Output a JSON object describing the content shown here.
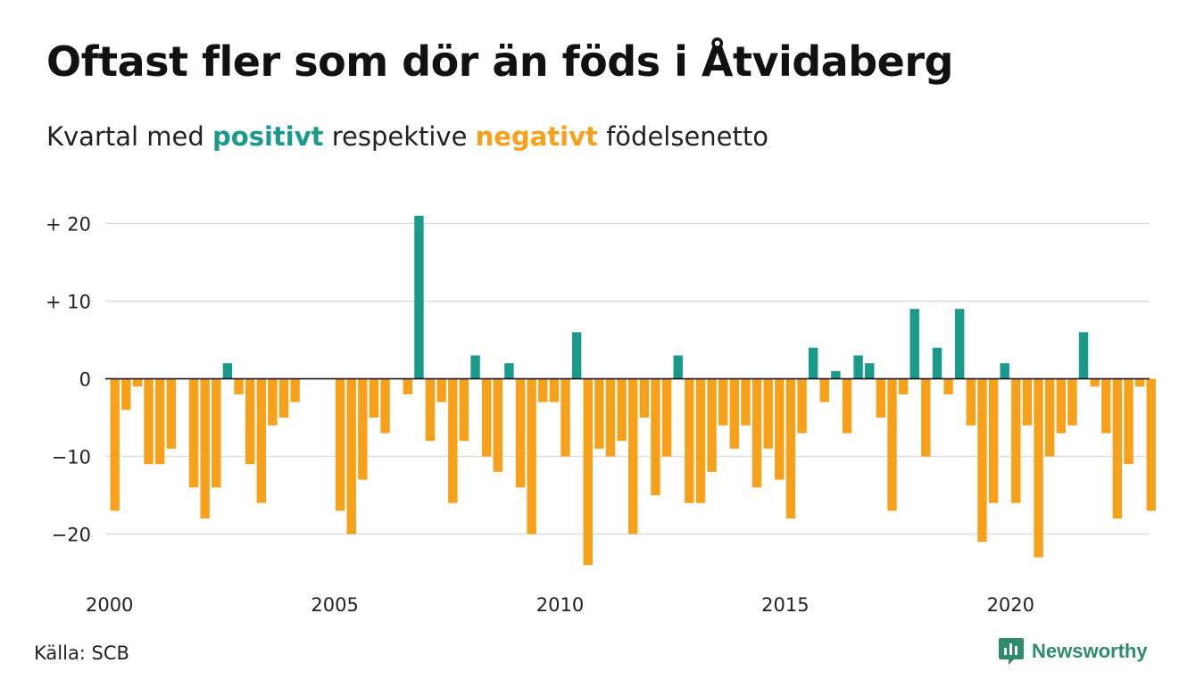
{
  "title": "Oftast fler som dör än föds i Åtvidaberg",
  "subtitle": {
    "part1": "Kvartal med ",
    "positive_word": "positivt",
    "part2": " respektive ",
    "negative_word": "negativt",
    "part3": " födelsenetto"
  },
  "source": "Källa: SCB",
  "brand": "Newsworthy",
  "colors": {
    "positive": "#1a9a8a",
    "negative": "#f7a11a",
    "grid": "#dddddd",
    "brand": "#2e8b6e"
  },
  "chart_data": {
    "type": "bar",
    "start_year": 2000,
    "quarters_per_year": 4,
    "ylim": [
      -25,
      22
    ],
    "yticks": [
      {
        "value": 20,
        "label": "+ 20"
      },
      {
        "value": 10,
        "label": "+ 10"
      },
      {
        "value": 0,
        "label": "0"
      },
      {
        "value": -10,
        "label": "−10"
      },
      {
        "value": -20,
        "label": "−20"
      }
    ],
    "xticks": [
      {
        "value": 2000,
        "label": "2000"
      },
      {
        "value": 2005,
        "label": "2005"
      },
      {
        "value": 2010,
        "label": "2010"
      },
      {
        "value": 2015,
        "label": "2015"
      },
      {
        "value": 2020,
        "label": "2020"
      }
    ],
    "grid": true,
    "values": [
      -17,
      -4,
      -1,
      -11,
      -11,
      -9,
      0,
      -14,
      -18,
      -14,
      2,
      -2,
      -11,
      -16,
      -6,
      -5,
      -3,
      0,
      0,
      0,
      -17,
      -20,
      -13,
      -5,
      -7,
      0,
      -2,
      21,
      -8,
      -3,
      -16,
      -8,
      3,
      -10,
      -12,
      2,
      -14,
      -20,
      -3,
      -3,
      -10,
      6,
      -24,
      -9,
      -10,
      -8,
      -20,
      -5,
      -15,
      -10,
      3,
      -16,
      -16,
      -12,
      -6,
      -9,
      -6,
      -14,
      -9,
      -13,
      -18,
      -7,
      4,
      -3,
      1,
      -7,
      3,
      2,
      -5,
      -17,
      -2,
      9,
      -10,
      4,
      -2,
      9,
      -6,
      -21,
      -16,
      2,
      -16,
      -6,
      -23,
      -10,
      -7,
      -6,
      6,
      -1,
      -7,
      -18,
      -11,
      -1,
      -17
    ]
  }
}
